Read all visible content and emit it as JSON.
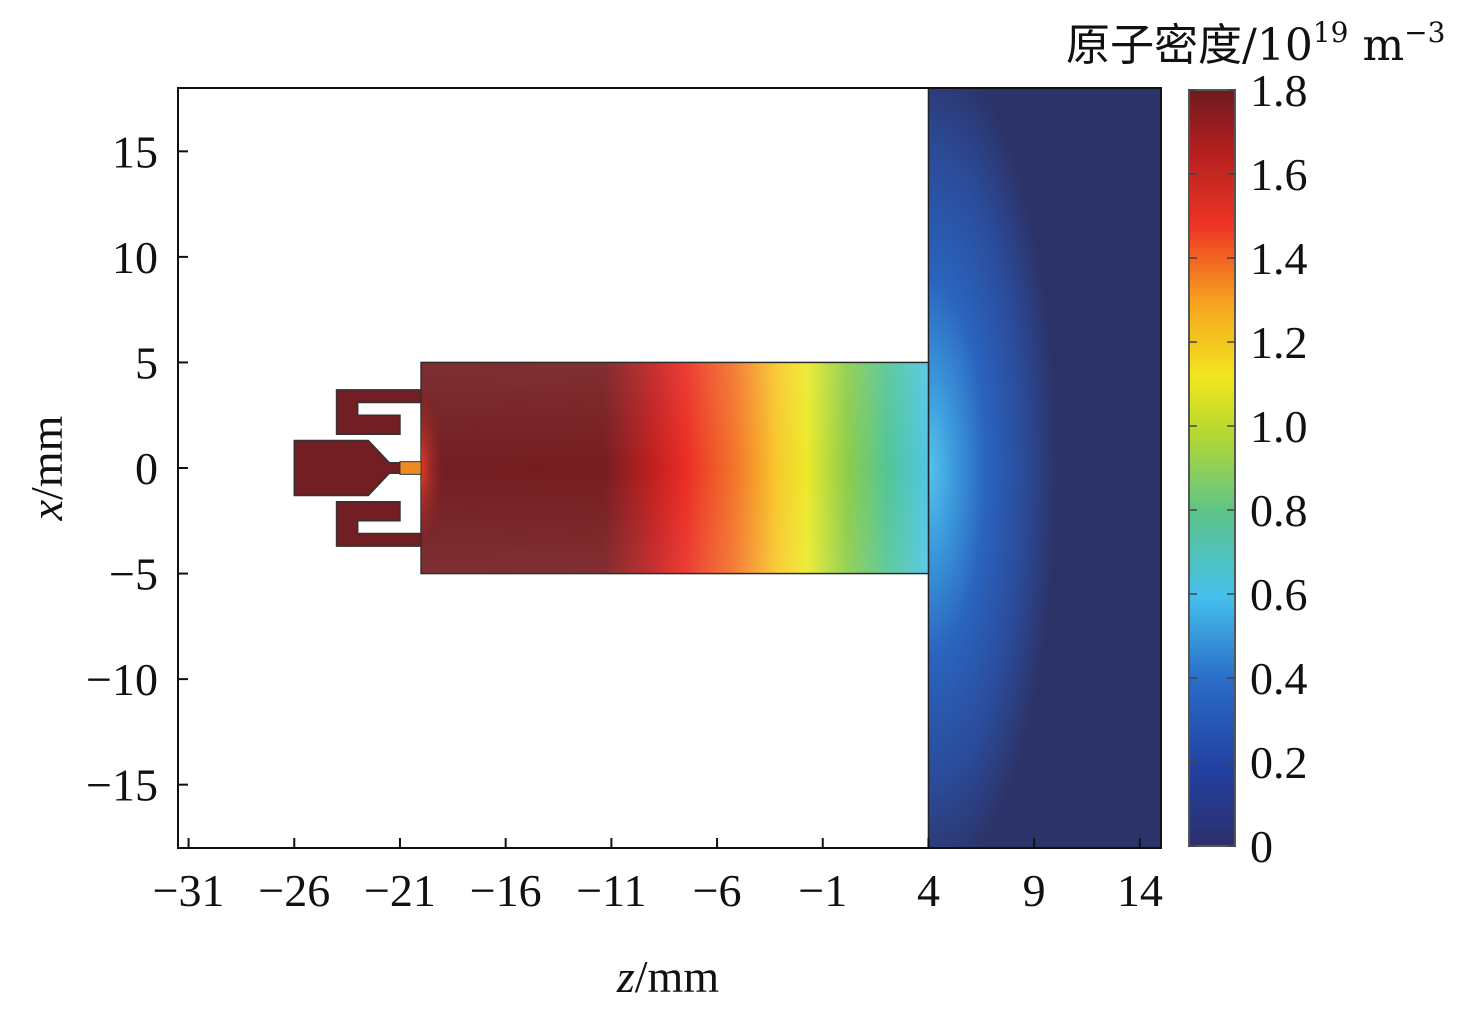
{
  "chart_data": {
    "type": "heatmap",
    "title": "",
    "xlabel": {
      "var": "z",
      "unit": "/mm"
    },
    "ylabel": {
      "var": "x",
      "unit": "/mm"
    },
    "xlim": [
      -31.5,
      15
    ],
    "ylim": [
      -18,
      18
    ],
    "xticks": [
      "−31",
      "−26",
      "−21",
      "−16",
      "−11",
      "−6",
      "−1",
      "4",
      "9",
      "14"
    ],
    "xtick_values": [
      -31,
      -26,
      -21,
      -16,
      -11,
      -6,
      -1,
      4,
      9,
      14
    ],
    "yticks": [
      "15",
      "10",
      "5",
      "0",
      "−5",
      "−10",
      "−15"
    ],
    "ytick_values": [
      15,
      10,
      5,
      0,
      -5,
      -10,
      -15
    ],
    "colorbar": {
      "title_main": "原子密度/10",
      "title_exp1": "19",
      "title_unit": " m",
      "title_exp2": "−3",
      "range": [
        0,
        1.8
      ],
      "ticks": [
        "1.8",
        "1.6",
        "1.4",
        "1.2",
        "1.0",
        "0.8",
        "0.6",
        "0.4",
        "0.2",
        "0"
      ],
      "tick_values": [
        1.8,
        1.6,
        1.4,
        1.2,
        1.0,
        0.8,
        0.6,
        0.4,
        0.2,
        0
      ],
      "colors": [
        "#2c2f6b",
        "#1f4fb0",
        "#3aa0e0",
        "#47c8ea",
        "#5cc48a",
        "#b8d92e",
        "#f5e61e",
        "#f6a21f",
        "#ee4623",
        "#b31f1f",
        "#6d1a1f"
      ]
    },
    "regions": [
      {
        "name": "nozzle-body",
        "z": [
          -26,
          -22.5
        ],
        "x": [
          -1.3,
          1.3
        ],
        "density": 1.8
      },
      {
        "name": "nozzle-throat",
        "z": [
          -21,
          -20
        ],
        "x": [
          -0.3,
          0.3
        ],
        "density": 1.3
      },
      {
        "name": "channel",
        "z": [
          -20,
          4
        ],
        "x": [
          -5,
          5
        ],
        "density_profile": [
          {
            "z": -20,
            "density": 1.8
          },
          {
            "z": -11,
            "density": 1.75
          },
          {
            "z": -8,
            "density": 1.55
          },
          {
            "z": -4,
            "density": 1.35
          },
          {
            "z": -1,
            "density": 1.1
          },
          {
            "z": 2,
            "density": 0.8
          },
          {
            "z": 4,
            "density": 0.6
          }
        ]
      },
      {
        "name": "chamber",
        "z": [
          4,
          15
        ],
        "x": [
          -18,
          18
        ],
        "density_range": [
          0.05,
          0.6
        ]
      }
    ]
  }
}
